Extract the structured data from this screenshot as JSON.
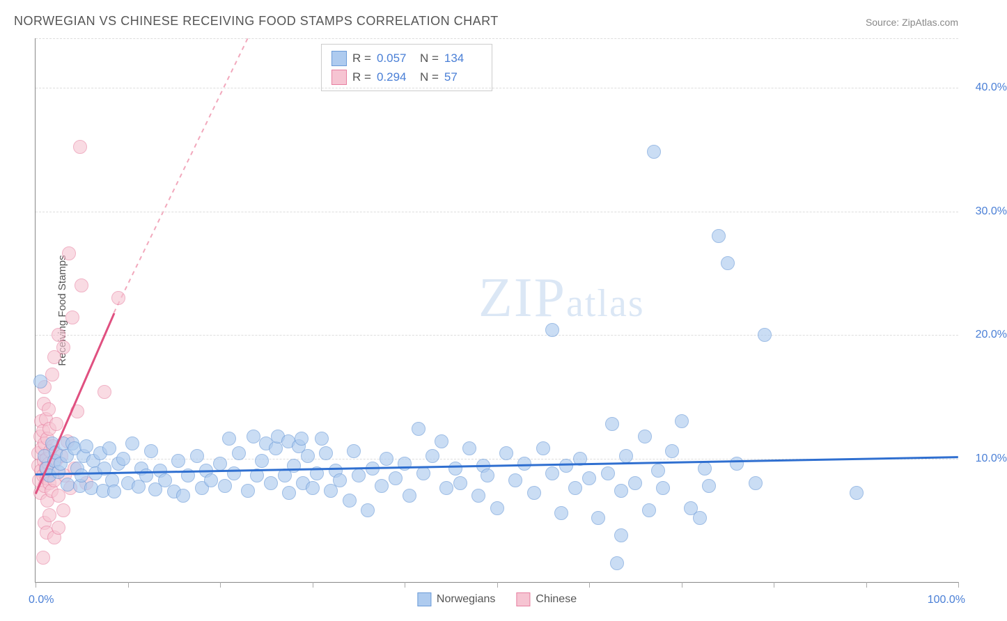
{
  "title": "NORWEGIAN VS CHINESE RECEIVING FOOD STAMPS CORRELATION CHART",
  "source_prefix": "Source: ",
  "source_name": "ZipAtlas.com",
  "watermark_zip": "ZIP",
  "watermark_atlas": "atlas",
  "ylabel": "Receiving Food Stamps",
  "chart": {
    "type": "scatter",
    "xlim": [
      0,
      100
    ],
    "ylim": [
      0,
      44
    ],
    "x_tick_positions": [
      0,
      10,
      20,
      30,
      40,
      50,
      60,
      70,
      80,
      90,
      100
    ],
    "x_min_label": "0.0%",
    "x_max_label": "100.0%",
    "y_gridlines": [
      10,
      20,
      30,
      40,
      44
    ],
    "y_tick_labels": {
      "10": "10.0%",
      "20": "20.0%",
      "30": "30.0%",
      "40": "40.0%"
    },
    "background_color": "#ffffff",
    "grid_color": "#dddddd",
    "axis_color": "#888888",
    "tick_label_color": "#4a7fd6",
    "marker_radius": 9,
    "marker_border_width": 1.5,
    "series": {
      "norwegians": {
        "label": "Norwegians",
        "fill_color": "#aecbef",
        "stroke_color": "#6b9bd8",
        "fill_opacity": 0.65,
        "R": "0.057",
        "N": "134",
        "regression": {
          "x1": 0,
          "y1": 8.8,
          "x2": 100,
          "y2": 10.2,
          "color": "#2f6fd0",
          "width": 2.5
        },
        "points": [
          [
            0.5,
            16.2
          ],
          [
            1,
            10.2
          ],
          [
            1.2,
            9.2
          ],
          [
            1.5,
            8.6
          ],
          [
            1.8,
            11.2
          ],
          [
            2,
            9.8
          ],
          [
            2.2,
            10.5
          ],
          [
            2.5,
            8.9
          ],
          [
            2.7,
            9.6
          ],
          [
            3,
            11.2
          ],
          [
            3.4,
            10.2
          ],
          [
            3.5,
            7.9
          ],
          [
            4,
            11.2
          ],
          [
            4.2,
            10.8
          ],
          [
            4.5,
            9.2
          ],
          [
            4.8,
            7.8
          ],
          [
            5,
            8.6
          ],
          [
            5.2,
            10.2
          ],
          [
            5.5,
            11.0
          ],
          [
            6,
            7.6
          ],
          [
            6.3,
            9.8
          ],
          [
            6.5,
            8.8
          ],
          [
            7,
            10.4
          ],
          [
            7.3,
            7.4
          ],
          [
            7.5,
            9.2
          ],
          [
            8,
            10.8
          ],
          [
            8.3,
            8.2
          ],
          [
            8.5,
            7.3
          ],
          [
            9,
            9.6
          ],
          [
            9.5,
            10.0
          ],
          [
            10,
            8.0
          ],
          [
            10.5,
            11.2
          ],
          [
            11.2,
            7.7
          ],
          [
            11.5,
            9.2
          ],
          [
            12,
            8.6
          ],
          [
            12.5,
            10.6
          ],
          [
            13,
            7.5
          ],
          [
            13.5,
            9.0
          ],
          [
            14,
            8.2
          ],
          [
            15,
            7.3
          ],
          [
            15.5,
            9.8
          ],
          [
            16,
            7.0
          ],
          [
            16.5,
            8.6
          ],
          [
            17.5,
            10.2
          ],
          [
            18,
            7.6
          ],
          [
            18.5,
            9.0
          ],
          [
            19,
            8.2
          ],
          [
            20,
            9.6
          ],
          [
            20.5,
            7.8
          ],
          [
            21,
            11.6
          ],
          [
            21.5,
            8.8
          ],
          [
            22,
            10.4
          ],
          [
            23,
            7.4
          ],
          [
            23.6,
            11.8
          ],
          [
            24,
            8.6
          ],
          [
            24.5,
            9.8
          ],
          [
            25,
            11.2
          ],
          [
            25.5,
            8.0
          ],
          [
            26,
            10.8
          ],
          [
            26.3,
            11.8
          ],
          [
            27,
            8.6
          ],
          [
            27.4,
            11.4
          ],
          [
            27.5,
            7.2
          ],
          [
            28,
            9.4
          ],
          [
            28.5,
            11.0
          ],
          [
            28.8,
            11.6
          ],
          [
            29,
            8.0
          ],
          [
            29.5,
            10.2
          ],
          [
            30,
            7.6
          ],
          [
            30.5,
            8.8
          ],
          [
            31,
            11.6
          ],
          [
            31.5,
            10.4
          ],
          [
            32,
            7.4
          ],
          [
            32.5,
            9.0
          ],
          [
            33,
            8.2
          ],
          [
            34,
            6.6
          ],
          [
            34.5,
            10.6
          ],
          [
            35,
            8.6
          ],
          [
            36,
            5.8
          ],
          [
            36.5,
            9.2
          ],
          [
            37.5,
            7.8
          ],
          [
            38,
            10.0
          ],
          [
            39,
            8.4
          ],
          [
            40,
            9.6
          ],
          [
            40.5,
            7.0
          ],
          [
            41.5,
            12.4
          ],
          [
            42,
            8.8
          ],
          [
            43,
            10.2
          ],
          [
            44,
            11.4
          ],
          [
            44.5,
            7.6
          ],
          [
            45.5,
            9.2
          ],
          [
            46,
            8.0
          ],
          [
            47,
            10.8
          ],
          [
            48,
            7.0
          ],
          [
            48.5,
            9.4
          ],
          [
            49,
            8.6
          ],
          [
            50,
            6.0
          ],
          [
            51,
            10.4
          ],
          [
            52,
            8.2
          ],
          [
            53,
            9.6
          ],
          [
            54,
            7.2
          ],
          [
            55,
            10.8
          ],
          [
            56,
            8.8
          ],
          [
            56,
            20.4
          ],
          [
            57,
            5.6
          ],
          [
            57.5,
            9.4
          ],
          [
            58.5,
            7.6
          ],
          [
            59,
            10.0
          ],
          [
            60,
            8.4
          ],
          [
            61,
            5.2
          ],
          [
            62,
            8.8
          ],
          [
            62.5,
            12.8
          ],
          [
            63.5,
            7.4
          ],
          [
            64,
            10.2
          ],
          [
            65,
            8.0
          ],
          [
            66,
            11.8
          ],
          [
            66.5,
            5.8
          ],
          [
            67.5,
            9.0
          ],
          [
            67,
            34.8
          ],
          [
            68,
            7.6
          ],
          [
            69,
            10.6
          ],
          [
            70,
            13.0
          ],
          [
            71,
            6.0
          ],
          [
            72,
            5.2
          ],
          [
            72.5,
            9.2
          ],
          [
            73,
            7.8
          ],
          [
            74,
            28.0
          ],
          [
            75,
            25.8
          ],
          [
            76,
            9.6
          ],
          [
            78,
            8.0
          ],
          [
            79,
            20.0
          ],
          [
            89,
            7.2
          ],
          [
            63,
            1.5
          ],
          [
            63.5,
            3.8
          ]
        ]
      },
      "chinese": {
        "label": "Chinese",
        "fill_color": "#f6c4d2",
        "stroke_color": "#e77fa0",
        "fill_opacity": 0.6,
        "R": "0.294",
        "N": "57",
        "regression_solid": {
          "x1": 0,
          "y1": 7.2,
          "x2": 8.5,
          "y2": 21.8,
          "color": "#e05080",
          "width": 2.5
        },
        "regression_dashed": {
          "x1": 8.5,
          "y1": 21.8,
          "x2": 23,
          "y2": 44,
          "color": "#f2a8bc",
          "dash": "6,6"
        },
        "points": [
          [
            0.3,
            9.4
          ],
          [
            0.3,
            10.4
          ],
          [
            0.4,
            8.2
          ],
          [
            0.5,
            11.8
          ],
          [
            0.5,
            7.2
          ],
          [
            0.6,
            9.0
          ],
          [
            0.6,
            13.0
          ],
          [
            0.7,
            10.8
          ],
          [
            0.8,
            8.6
          ],
          [
            0.8,
            12.2
          ],
          [
            0.9,
            9.8
          ],
          [
            0.9,
            14.4
          ],
          [
            1.0,
            7.8
          ],
          [
            1.0,
            11.2
          ],
          [
            1.0,
            15.8
          ],
          [
            1.1,
            9.2
          ],
          [
            1.1,
            13.2
          ],
          [
            1.2,
            10.0
          ],
          [
            1.2,
            8.4
          ],
          [
            1.3,
            11.6
          ],
          [
            1.3,
            6.6
          ],
          [
            1.4,
            9.6
          ],
          [
            1.4,
            14.0
          ],
          [
            1.5,
            12.4
          ],
          [
            1.5,
            8.0
          ],
          [
            1.6,
            10.6
          ],
          [
            1.7,
            7.4
          ],
          [
            1.8,
            9.0
          ],
          [
            1.8,
            16.8
          ],
          [
            1.9,
            11.0
          ],
          [
            2.0,
            8.2
          ],
          [
            2.0,
            18.2
          ],
          [
            2.2,
            9.8
          ],
          [
            2.3,
            12.8
          ],
          [
            2.5,
            7.0
          ],
          [
            2.5,
            20.0
          ],
          [
            2.8,
            10.2
          ],
          [
            3.0,
            5.8
          ],
          [
            3.0,
            19.0
          ],
          [
            3.2,
            8.6
          ],
          [
            3.5,
            11.4
          ],
          [
            3.6,
            26.6
          ],
          [
            3.8,
            7.6
          ],
          [
            4.0,
            21.4
          ],
          [
            4.2,
            9.2
          ],
          [
            4.5,
            13.8
          ],
          [
            5.0,
            24.0
          ],
          [
            5.5,
            8.0
          ],
          [
            4.8,
            35.2
          ],
          [
            1.0,
            4.8
          ],
          [
            1.2,
            4.0
          ],
          [
            1.5,
            5.4
          ],
          [
            2.0,
            3.6
          ],
          [
            2.5,
            4.4
          ],
          [
            0.8,
            2.0
          ],
          [
            7.5,
            15.4
          ],
          [
            9.0,
            23.0
          ]
        ]
      }
    }
  },
  "legend_top": {
    "R_label": "R =",
    "N_label": "N ="
  }
}
